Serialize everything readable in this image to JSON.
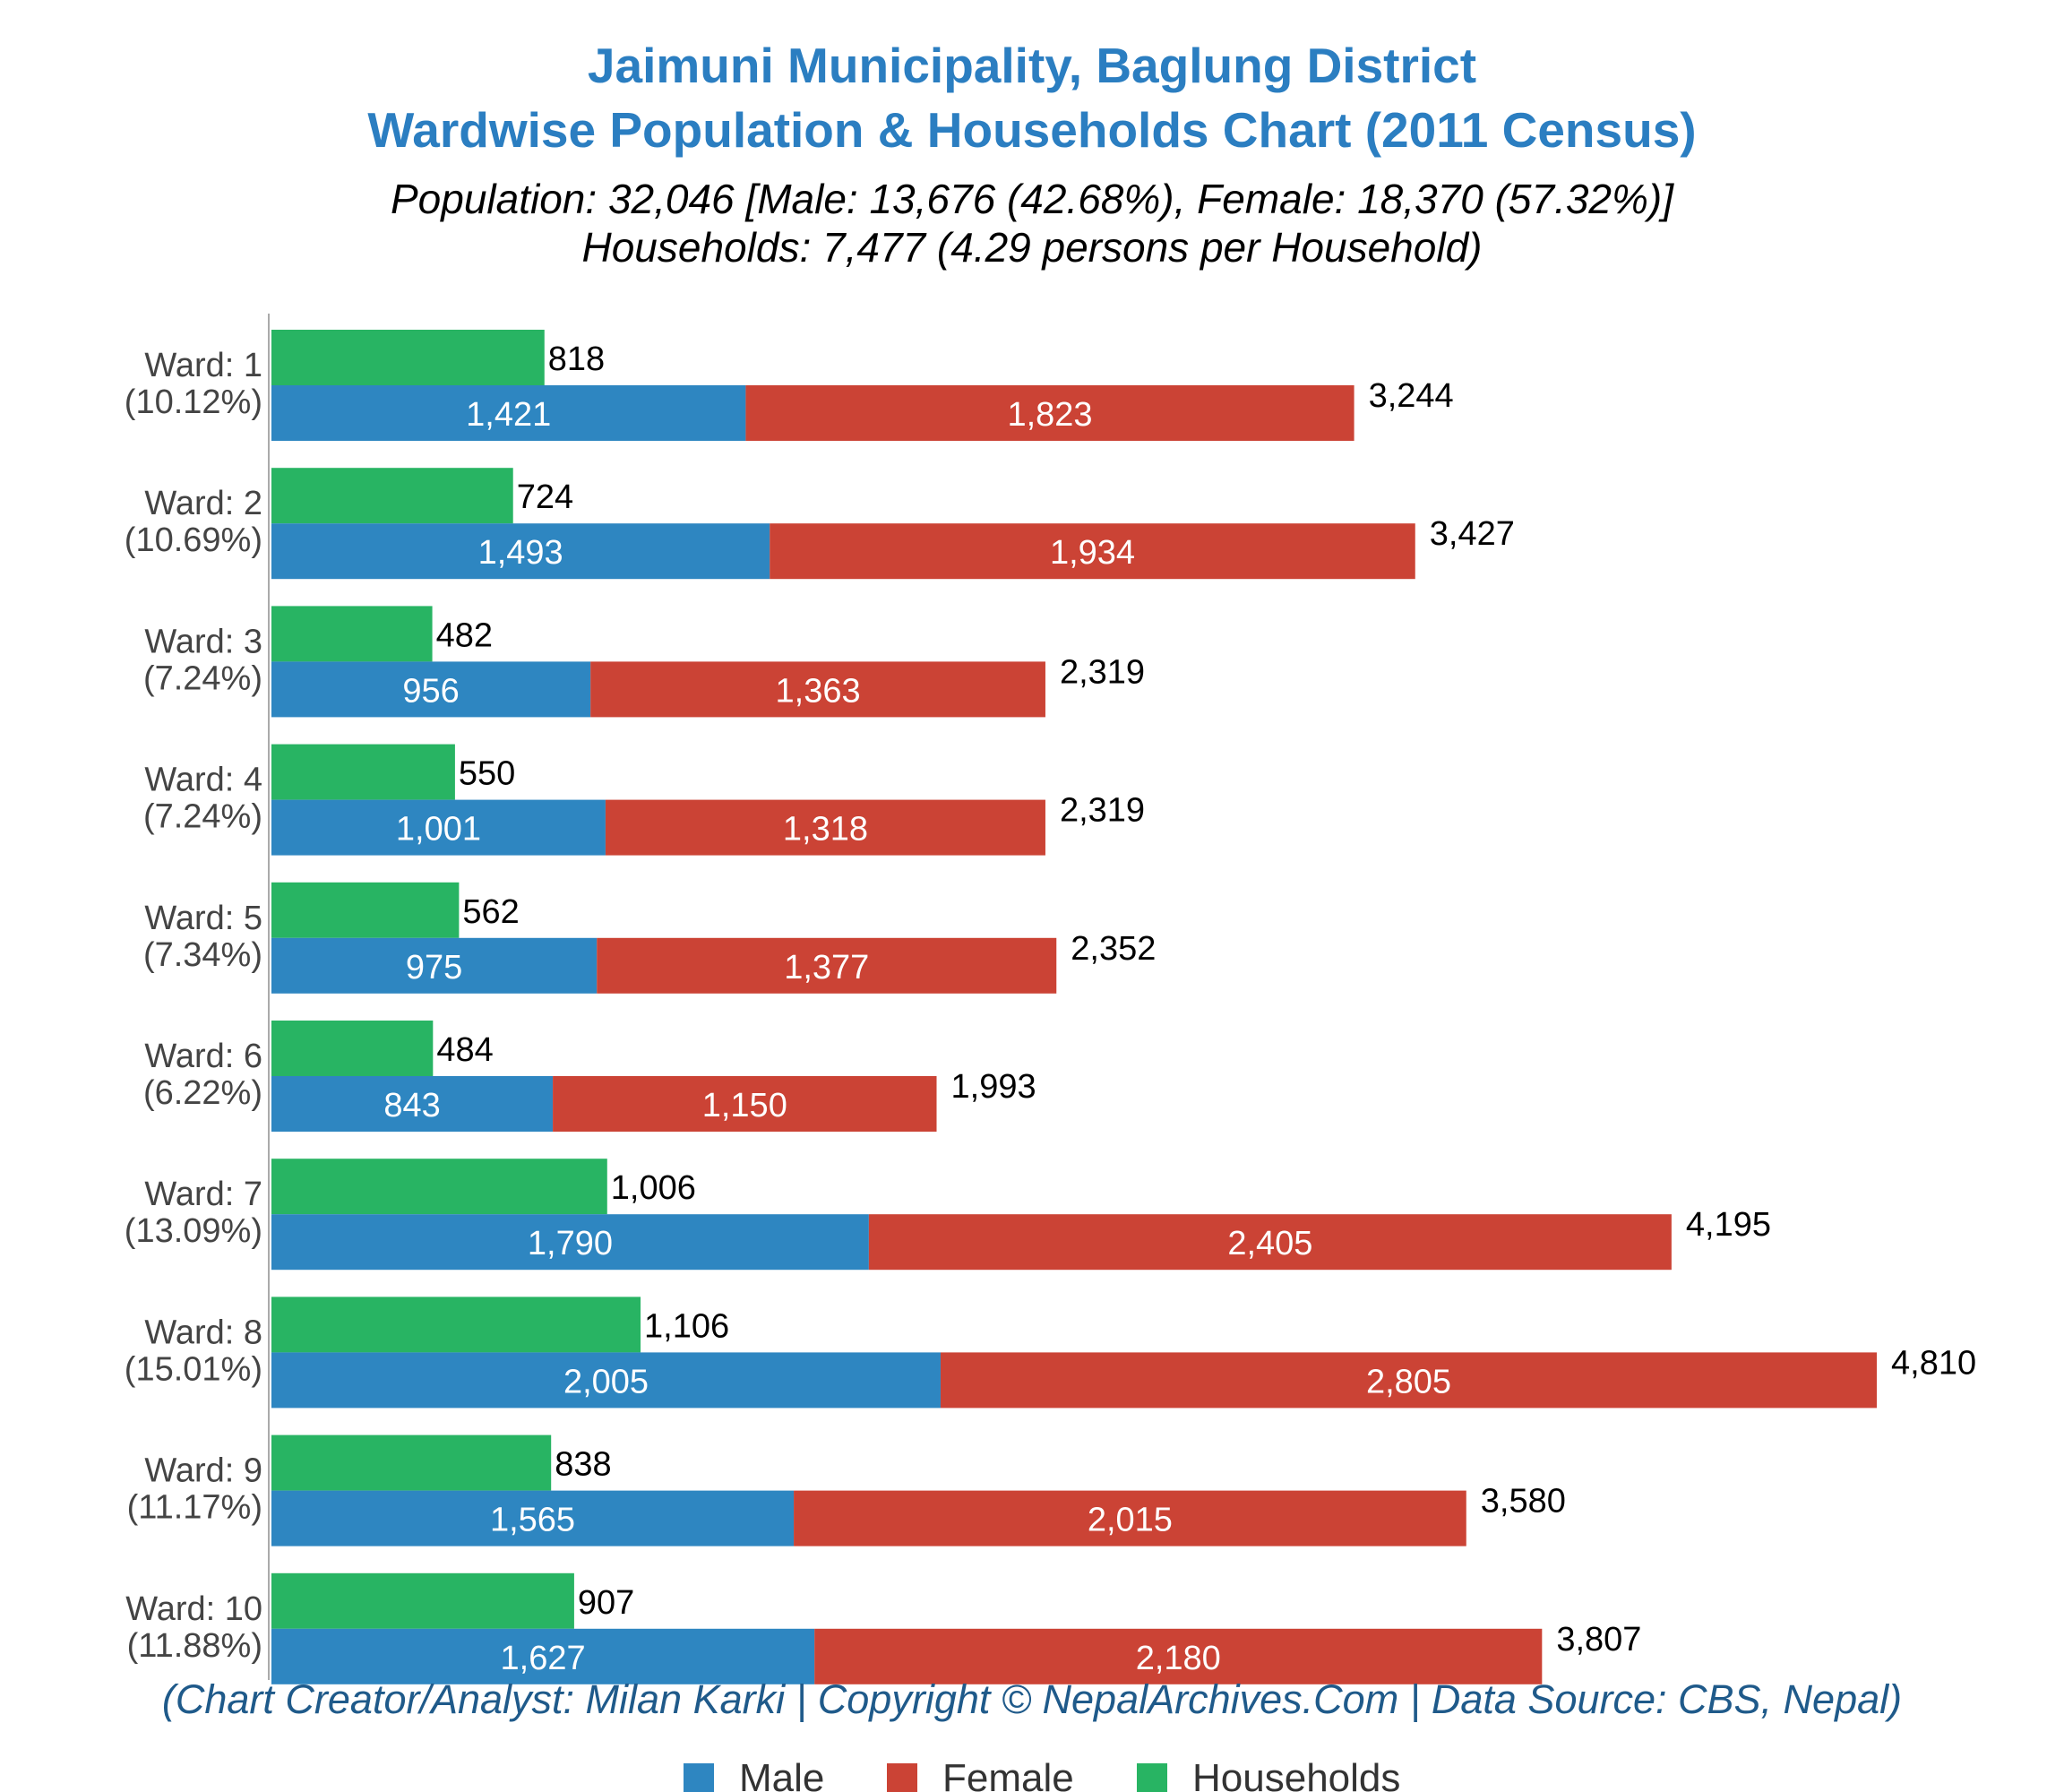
{
  "header": {
    "title_line1": "Jaimuni Municipality, Baglung District",
    "title_line2": "Wardwise Population & Households Chart (2011 Census)",
    "subtitle_line1": "Population: 32,046 [Male: 13,676 (42.68%), Female: 18,370 (57.32%)]",
    "subtitle_line2": "Households: 7,477 (4.29 persons per Household)"
  },
  "credit": "(Chart Creator/Analyst: Milan Karki | Copyright © NepalArchives.Com | Data Source: CBS, Nepal)",
  "colors": {
    "male": "#2e86c1",
    "female": "#cb4335",
    "households": "#28b463",
    "title": "#2b7ec1",
    "axis": "#aaaaaa"
  },
  "chart_data": {
    "type": "bar",
    "orientation": "horizontal",
    "stacked_series": [
      "Male",
      "Female"
    ],
    "categories": [
      "Ward: 1",
      "Ward: 2",
      "Ward: 3",
      "Ward: 4",
      "Ward: 5",
      "Ward: 6",
      "Ward: 7",
      "Ward: 8",
      "Ward: 9",
      "Ward: 10"
    ],
    "category_share": [
      "(10.12%)",
      "(10.69%)",
      "(7.24%)",
      "(7.24%)",
      "(7.34%)",
      "(6.22%)",
      "(13.09%)",
      "(15.01%)",
      "(11.17%)",
      "(11.88%)"
    ],
    "series": [
      {
        "name": "Male",
        "values": [
          1421,
          1493,
          956,
          1001,
          975,
          843,
          1790,
          2005,
          1565,
          1627
        ]
      },
      {
        "name": "Female",
        "values": [
          1823,
          1934,
          1363,
          1318,
          1377,
          1150,
          2405,
          2805,
          2015,
          2180
        ]
      },
      {
        "name": "Households",
        "values": [
          818,
          724,
          482,
          550,
          562,
          484,
          1006,
          1106,
          838,
          907
        ]
      }
    ],
    "totals": [
      3244,
      3427,
      2319,
      2319,
      2352,
      1993,
      4195,
      4810,
      3580,
      3807
    ],
    "xlim": [
      0,
      4810
    ],
    "grid": false,
    "legend": "bottom-center"
  }
}
